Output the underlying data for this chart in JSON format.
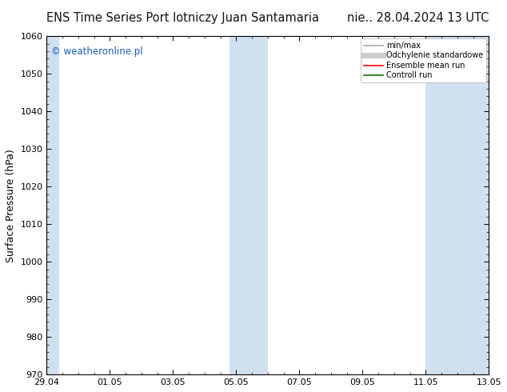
{
  "title_left": "ENS Time Series Port lotniczy Juan Santamaria",
  "title_right": "nie.. 28.04.2024 13 UTC",
  "ylabel": "Surface Pressure (hPa)",
  "ylim": [
    970,
    1060
  ],
  "yticks": [
    970,
    980,
    990,
    1000,
    1010,
    1020,
    1030,
    1040,
    1050,
    1060
  ],
  "xtick_labels": [
    "29.04",
    "01.05",
    "03.05",
    "05.05",
    "07.05",
    "09.05",
    "11.05",
    "13.05"
  ],
  "xtick_positions": [
    0,
    2,
    4,
    6,
    8,
    10,
    12,
    14
  ],
  "x_total_days": 14,
  "shaded_bands": [
    {
      "xstart": 0.0,
      "xend": 0.4
    },
    {
      "xstart": 5.8,
      "xend": 7.0
    },
    {
      "xstart": 12.0,
      "xend": 14.0
    }
  ],
  "band_color": "#cfe0f0",
  "watermark_text": "© weatheronline.pl",
  "watermark_color": "#1a5ccc",
  "legend_items": [
    {
      "label": "min/max",
      "color": "#aaaaaa",
      "lw": 1.2
    },
    {
      "label": "Odchylenie standardowe",
      "color": "#cccccc",
      "lw": 5
    },
    {
      "label": "Ensemble mean run",
      "color": "#ff0000",
      "lw": 1.2
    },
    {
      "label": "Controll run",
      "color": "#007700",
      "lw": 1.2
    }
  ],
  "background_color": "#ffffff",
  "plot_bg_color": "#ffffff",
  "title_fontsize": 10.5,
  "label_fontsize": 9,
  "tick_fontsize": 8,
  "watermark_fontsize": 8.5,
  "legend_fontsize": 7.0
}
